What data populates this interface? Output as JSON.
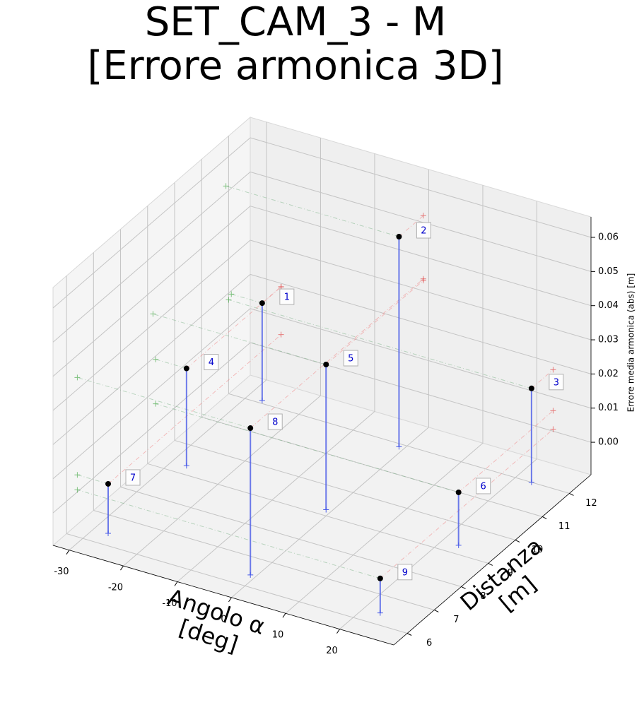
{
  "chart_data": {
    "type": "scatter3d",
    "title": [
      "SET_CAM_3 - M",
      "[Errore armonica 3D]"
    ],
    "xlabel": [
      "Angolo α",
      "[deg]"
    ],
    "ylabel": [
      "Distanza",
      "[m]"
    ],
    "zlabel": "Errore media armonica (abs) [m]",
    "point_labels": [
      "1",
      "2",
      "3",
      "4",
      "5",
      "6",
      "7",
      "8",
      "9"
    ],
    "x": [
      -27.3,
      -1,
      23,
      -27.3,
      -1,
      23,
      -27.3,
      -1,
      23
    ],
    "y": [
      12.1,
      11.9,
      12.0,
      9.3,
      9.2,
      9.3,
      6.4,
      6.4,
      6.4
    ],
    "z": [
      0.019,
      0.052,
      0.018,
      0.019,
      0.033,
      0.006,
      0.005,
      0.0335,
      0.0006
    ],
    "color": "#000000",
    "stem_color": "#4a5ce8",
    "label_color": "#0000cc",
    "xlim": [
      -33,
      30
    ],
    "ylim": [
      5.5,
      12.8
    ],
    "zlim": [
      -0.0095,
      0.066
    ],
    "xticks": [
      -30,
      -20,
      -10,
      0,
      10,
      20
    ],
    "yticks": [
      6,
      7,
      8,
      9,
      10,
      11,
      12
    ],
    "zticks": [
      {
        "value": 0,
        "label": "0.00"
      },
      {
        "value": 0.01,
        "label": "0.01"
      },
      {
        "value": 0.02,
        "label": "0.02"
      },
      {
        "value": 0.03,
        "label": "0.03"
      },
      {
        "value": 0.04,
        "label": "0.04"
      },
      {
        "value": 0.05,
        "label": "0.05"
      },
      {
        "value": 0.06,
        "label": "0.06"
      }
    ],
    "grid": true
  }
}
